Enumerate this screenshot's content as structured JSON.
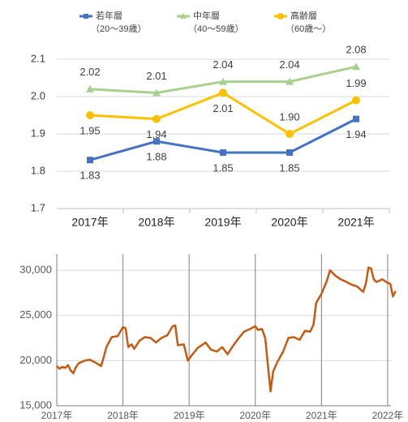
{
  "chart_data": [
    {
      "type": "line",
      "categories": [
        "2017年",
        "2018年",
        "2019年",
        "2020年",
        "2021年"
      ],
      "series": [
        {
          "name": "若年層",
          "age_range": "（20～39歳）",
          "color": "#4472c4",
          "marker": "square",
          "values": [
            1.83,
            1.88,
            1.85,
            1.85,
            1.94
          ]
        },
        {
          "name": "中年層",
          "age_range": "（40～59歳）",
          "color": "#a9d18e",
          "marker": "triangle",
          "values": [
            2.02,
            2.01,
            2.04,
            2.04,
            2.08
          ]
        },
        {
          "name": "高齢層",
          "age_range": "（60歳～）",
          "color": "#ffc000",
          "marker": "circle",
          "values": [
            1.95,
            1.94,
            2.01,
            1.9,
            1.99
          ],
          "value_labels": [
            "1.95",
            "1.94",
            "2.01",
            "1.90",
            "1.99"
          ]
        }
      ],
      "ylim": [
        1.7,
        2.1
      ],
      "yticks": [
        1.7,
        1.8,
        1.9,
        {
          "value": 2,
          "label": "2.0"
        },
        2.1
      ],
      "grid": true
    },
    {
      "type": "line",
      "series": [
        {
          "color": "#c55a11",
          "x": [
            2017.0,
            2017.04,
            2017.08,
            2017.13,
            2017.17,
            2017.21,
            2017.25,
            2017.29,
            2017.33,
            2017.42,
            2017.5,
            2017.58,
            2017.67,
            2017.71,
            2017.75,
            2017.83,
            2017.92,
            2018.0,
            2018.04,
            2018.08,
            2018.13,
            2018.17,
            2018.25,
            2018.33,
            2018.42,
            2018.5,
            2018.58,
            2018.67,
            2018.75,
            2018.79,
            2018.83,
            2018.92,
            2018.98,
            2019.04,
            2019.13,
            2019.25,
            2019.33,
            2019.42,
            2019.5,
            2019.58,
            2019.67,
            2019.75,
            2019.83,
            2019.92,
            2020.0,
            2020.04,
            2020.1,
            2020.15,
            2020.19,
            2020.23,
            2020.27,
            2020.33,
            2020.42,
            2020.5,
            2020.58,
            2020.67,
            2020.75,
            2020.83,
            2020.88,
            2020.92,
            2021.0,
            2021.08,
            2021.13,
            2021.21,
            2021.29,
            2021.38,
            2021.46,
            2021.54,
            2021.63,
            2021.67,
            2021.71,
            2021.75,
            2021.79,
            2021.83,
            2021.92,
            2022.0,
            2022.04,
            2022.08,
            2022.12
          ],
          "values": [
            19400,
            19100,
            19300,
            19200,
            19500,
            18900,
            18600,
            19300,
            19700,
            20000,
            20100,
            19800,
            19400,
            20400,
            21500,
            22600,
            22700,
            23700,
            23600,
            21500,
            21800,
            21300,
            22200,
            22600,
            22500,
            22000,
            22500,
            22800,
            23800,
            23900,
            21700,
            21800,
            20000,
            20600,
            21400,
            22000,
            21200,
            21000,
            21500,
            20700,
            21700,
            22500,
            23200,
            23500,
            23800,
            23400,
            23500,
            22500,
            19500,
            16600,
            18800,
            19800,
            21000,
            22500,
            22600,
            22300,
            23300,
            23200,
            24000,
            26400,
            27400,
            28800,
            30000,
            29400,
            29000,
            28700,
            28400,
            28200,
            27600,
            28500,
            30300,
            30200,
            29000,
            28700,
            29000,
            28600,
            28500,
            27100,
            27700
          ]
        }
      ],
      "xlim": [
        2017,
        2022.05
      ],
      "xticks": [
        {
          "value": 2017,
          "label": "2017年"
        },
        {
          "value": 2018,
          "label": "2018年"
        },
        {
          "value": 2019,
          "label": "2019年"
        },
        {
          "value": 2020,
          "label": "2020年"
        },
        {
          "value": 2021,
          "label": "2021年"
        },
        {
          "value": 2022,
          "label": "2022年"
        }
      ],
      "ylim": [
        15000,
        31800
      ],
      "yticks": [
        {
          "value": 15000,
          "label": "15,000"
        },
        {
          "value": 20000,
          "label": "20,000"
        },
        {
          "value": 25000,
          "label": "25,000"
        },
        {
          "value": 30000,
          "label": "30,000"
        }
      ],
      "grid": true
    }
  ]
}
